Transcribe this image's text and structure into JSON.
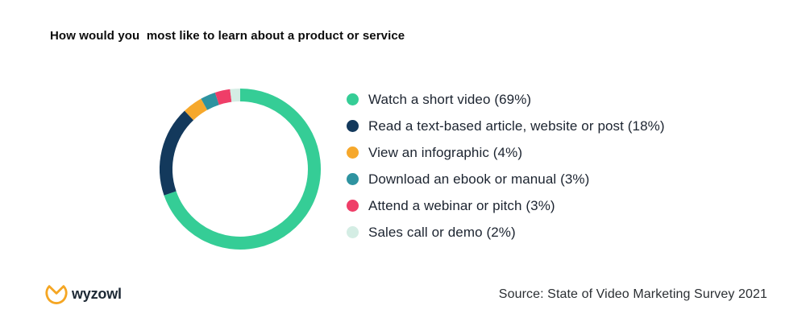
{
  "title": "How would you  most like to learn about a product or service",
  "legend": {
    "items": [
      {
        "label": "Watch a short video (69%)",
        "color": "#35cd96"
      },
      {
        "label": "Read a text-based article, website or post (18%)",
        "color": "#13395c"
      },
      {
        "label": "View an infographic (4%)",
        "color": "#f6a82c"
      },
      {
        "label": "Download an ebook or manual (3%)",
        "color": "#2e93a0"
      },
      {
        "label": "Attend a webinar or pitch (3%)",
        "color": "#ef3e68"
      },
      {
        "label": "Sales call or demo (2%)",
        "color": "#d4ede4"
      }
    ]
  },
  "footer": {
    "logo_text": "wyzowl",
    "logo_color": "#f5a623",
    "source": "Source: State of Video Marketing Survey 2021"
  },
  "chart_data": {
    "type": "pie",
    "subtype": "donut",
    "title": "How would you  most like to learn about a product or service",
    "categories": [
      "Watch a short video",
      "Read a text-based article, website or post",
      "View an infographic",
      "Download an ebook or manual",
      "Attend a webinar or pitch",
      "Sales call or demo"
    ],
    "values": [
      69,
      18,
      4,
      3,
      3,
      2
    ],
    "unit": "%",
    "colors": [
      "#35cd96",
      "#13395c",
      "#f6a82c",
      "#2e93a0",
      "#ef3e68",
      "#d4ede4"
    ],
    "start_angle_deg_from_top": 0,
    "direction": "clockwise",
    "legend_position": "right",
    "donut_ring_thickness_ratio": 0.16,
    "annotation_source": "Source: State of Video Marketing Survey 2021"
  }
}
